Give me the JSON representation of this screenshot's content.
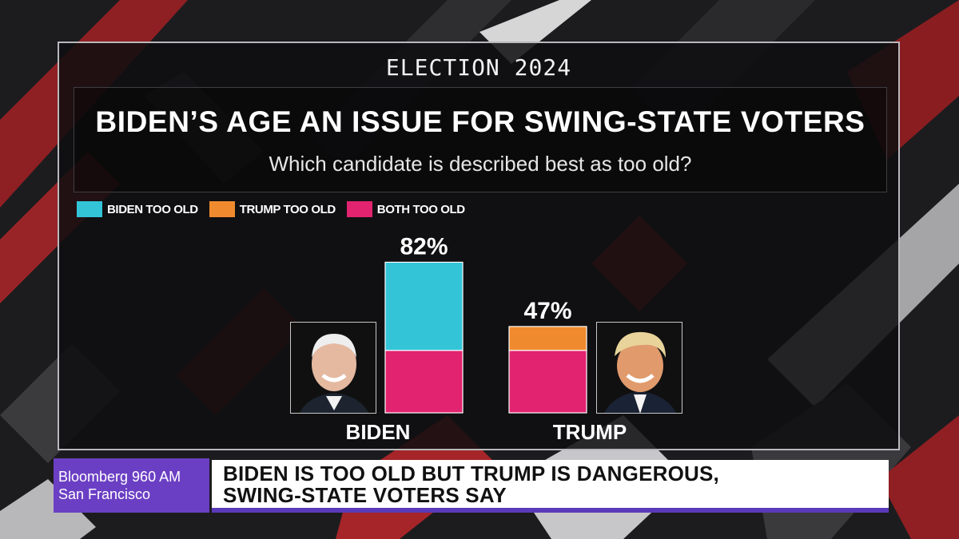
{
  "overlay": {
    "kicker": "ELECTION 2024",
    "title": "BIDEN’S AGE AN ISSUE FOR SWING-STATE VOTERS",
    "subtitle": "Which candidate is described best as too old?"
  },
  "chart_data": {
    "type": "bar",
    "stacked": true,
    "categories": [
      "BIDEN",
      "TRUMP"
    ],
    "series": [
      {
        "name": "BIDEN TOO OLD",
        "color": "#33c4d8",
        "values": [
          48,
          0
        ]
      },
      {
        "name": "TRUMP TOO OLD",
        "color": "#f08a2e",
        "values": [
          0,
          13
        ]
      },
      {
        "name": "BOTH TOO OLD",
        "color": "#e2236f",
        "values": [
          34,
          34
        ]
      }
    ],
    "totals": [
      82,
      47
    ],
    "total_labels": [
      "82%",
      "47%"
    ],
    "ylim": [
      0,
      100
    ],
    "legend_position": "top-left",
    "grid": false
  },
  "ticker": {
    "station_line1": "Bloomberg 960 AM",
    "station_line2": "San Francisco",
    "headline_line1": "BIDEN IS TOO OLD BUT TRUMP IS DANGEROUS,",
    "headline_line2": "SWING-STATE VOTERS SAY"
  }
}
